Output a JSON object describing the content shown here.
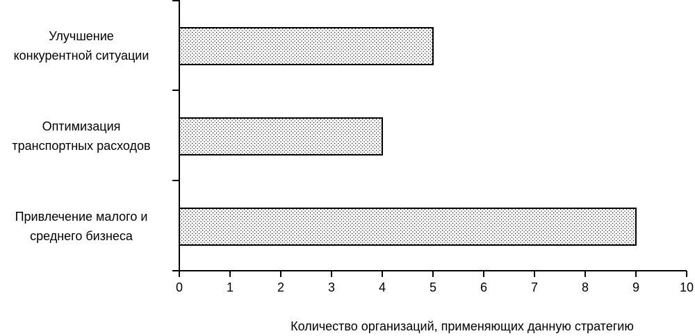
{
  "chart_data": {
    "type": "bar",
    "orientation": "horizontal",
    "categories": [
      "Улучшение\nконкурентной ситуации",
      "Оптимизация\nтранспортных расходов",
      "Привлечение малого и\nсреднего бизнеса"
    ],
    "values": [
      5,
      4,
      9
    ],
    "xlabel": "Количество организаций, применяющих данную стратегию",
    "xlim": [
      0,
      10
    ],
    "xticks": [
      0,
      1,
      2,
      3,
      4,
      5,
      6,
      7,
      8,
      9,
      10
    ]
  }
}
